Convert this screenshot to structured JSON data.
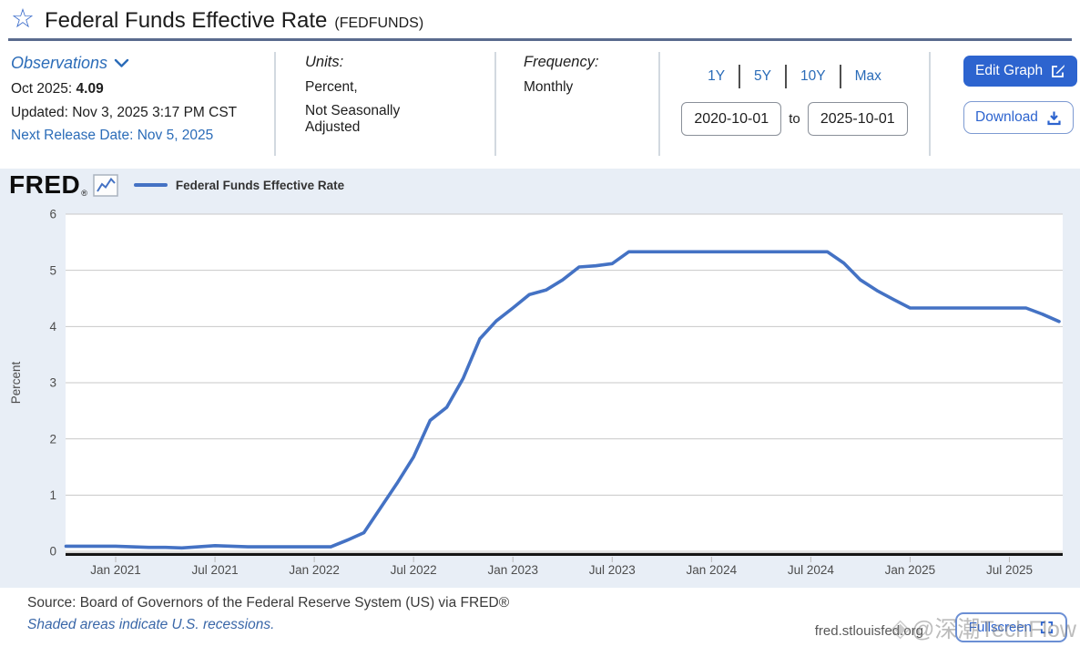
{
  "header": {
    "title": "Federal Funds Effective Rate",
    "series_id": "(FEDFUNDS)"
  },
  "meta": {
    "observations": {
      "label": "Observations",
      "latest_label": "Oct 2025:",
      "latest_value": "4.09",
      "updated": "Updated: Nov 3, 2025 3:17 PM CST",
      "next_release": "Next Release Date: Nov 5, 2025"
    },
    "units": {
      "label": "Units:",
      "line1": "Percent,",
      "line2": "Not Seasonally Adjusted"
    },
    "frequency": {
      "label": "Frequency:",
      "value": "Monthly"
    },
    "range": {
      "presets": [
        "1Y",
        "5Y",
        "10Y",
        "Max"
      ],
      "start_date": "2020-10-01",
      "to_label": "to",
      "end_date": "2025-10-01"
    },
    "actions": {
      "edit_graph": "Edit Graph",
      "download": "Download"
    }
  },
  "chart_header": {
    "logo": "FRED",
    "reg": "®"
  },
  "chart_data": {
    "type": "line",
    "title": "Federal Funds Effective Rate",
    "xlabel": "",
    "ylabel": "Percent",
    "ylim": [
      0,
      6
    ],
    "yticks": [
      0,
      1,
      2,
      3,
      4,
      5,
      6
    ],
    "grid": true,
    "legend_position": "top-left",
    "x_frequency": "Monthly",
    "x": [
      "2020-10",
      "2020-11",
      "2020-12",
      "2021-01",
      "2021-02",
      "2021-03",
      "2021-04",
      "2021-05",
      "2021-06",
      "2021-07",
      "2021-08",
      "2021-09",
      "2021-10",
      "2021-11",
      "2021-12",
      "2022-01",
      "2022-02",
      "2022-03",
      "2022-04",
      "2022-05",
      "2022-06",
      "2022-07",
      "2022-08",
      "2022-09",
      "2022-10",
      "2022-11",
      "2022-12",
      "2023-01",
      "2023-02",
      "2023-03",
      "2023-04",
      "2023-05",
      "2023-06",
      "2023-07",
      "2023-08",
      "2023-09",
      "2023-10",
      "2023-11",
      "2023-12",
      "2024-01",
      "2024-02",
      "2024-03",
      "2024-04",
      "2024-05",
      "2024-06",
      "2024-07",
      "2024-08",
      "2024-09",
      "2024-10",
      "2024-11",
      "2024-12",
      "2025-01",
      "2025-02",
      "2025-03",
      "2025-04",
      "2025-05",
      "2025-06",
      "2025-07",
      "2025-08",
      "2025-09",
      "2025-10"
    ],
    "x_tick_labels": [
      "Jan 2021",
      "Jul 2021",
      "Jan 2022",
      "Jul 2022",
      "Jan 2023",
      "Jul 2023",
      "Jan 2024",
      "Jul 2024",
      "Jan 2025",
      "Jul 2025"
    ],
    "x_tick_indices": [
      3,
      9,
      15,
      21,
      27,
      33,
      39,
      45,
      51,
      57
    ],
    "series": [
      {
        "name": "Federal Funds Effective Rate",
        "color": "#4472c4",
        "values": [
          0.09,
          0.09,
          0.09,
          0.09,
          0.08,
          0.07,
          0.07,
          0.06,
          0.08,
          0.1,
          0.09,
          0.08,
          0.08,
          0.08,
          0.08,
          0.08,
          0.08,
          0.2,
          0.33,
          0.77,
          1.21,
          1.68,
          2.33,
          2.56,
          3.08,
          3.78,
          4.1,
          4.33,
          4.57,
          4.65,
          4.83,
          5.06,
          5.08,
          5.12,
          5.33,
          5.33,
          5.33,
          5.33,
          5.33,
          5.33,
          5.33,
          5.33,
          5.33,
          5.33,
          5.33,
          5.33,
          5.33,
          5.13,
          4.83,
          4.64,
          4.48,
          4.33,
          4.33,
          4.33,
          4.33,
          4.33,
          4.33,
          4.33,
          4.33,
          4.22,
          4.09
        ]
      }
    ]
  },
  "footer": {
    "source": "Source: Board of Governors of the Federal Reserve System (US) via FRED®",
    "recession_note": "Shaded areas indicate U.S. recessions.",
    "site": "fred.stlouisfed.org",
    "fullscreen": "Fullscreen"
  },
  "watermark": {
    "logo_glyph": "◈",
    "text": "@深潮TechFlow"
  },
  "colors": {
    "accent_blue": "#2d64cf",
    "link_blue": "#2b6cb8",
    "line_blue": "#4472c4",
    "chart_bg": "#e8eef6",
    "header_rule": "#5a6b8e"
  }
}
